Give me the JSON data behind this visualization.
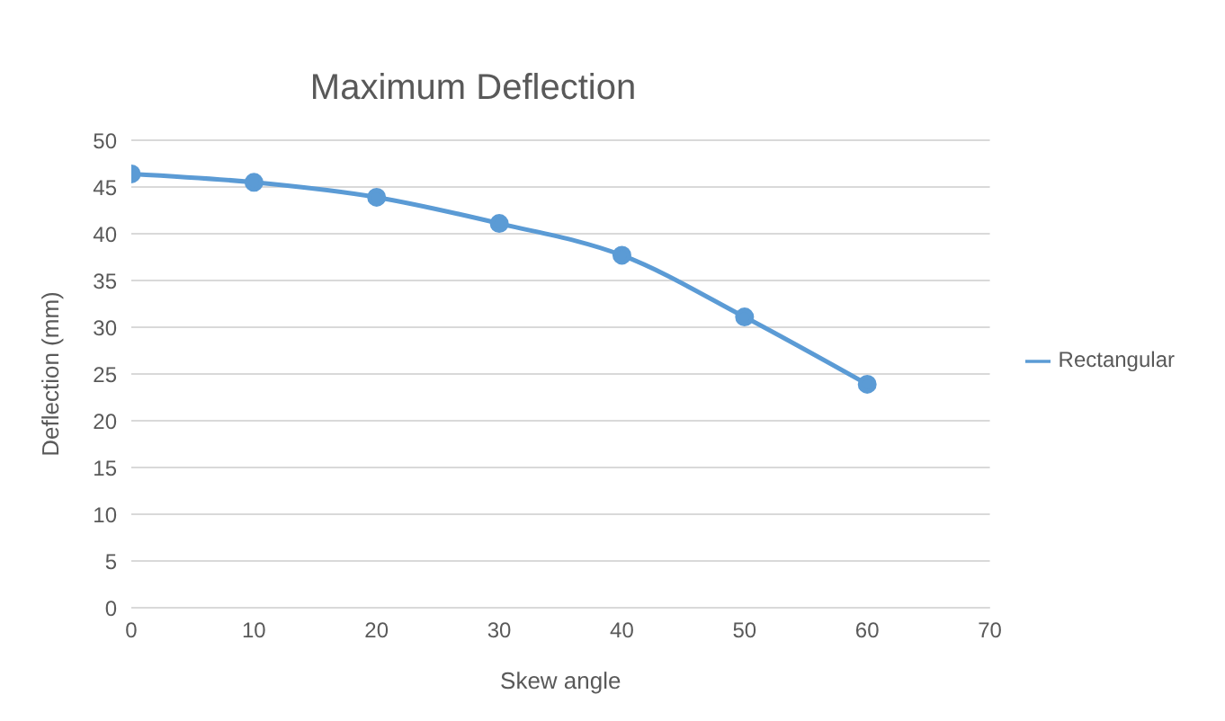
{
  "chart_data": {
    "type": "line",
    "title": "Maximum Deflection",
    "xlabel": "Skew angle",
    "ylabel": "Deflection (mm)",
    "x": [
      0,
      10,
      20,
      30,
      40,
      50,
      60
    ],
    "series": [
      {
        "name": "Rectangular",
        "color": "#5b9bd5",
        "values": [
          46.4,
          45.5,
          43.9,
          41.1,
          37.7,
          31.1,
          23.9
        ]
      }
    ],
    "xlim": [
      0,
      70
    ],
    "xticks": [
      0,
      10,
      20,
      30,
      40,
      50,
      60,
      70
    ],
    "ylim": [
      0,
      50
    ],
    "yticks": [
      0,
      5,
      10,
      15,
      20,
      25,
      30,
      35,
      40,
      45,
      50
    ],
    "grid": "y",
    "legend": "right",
    "marker": "circle",
    "line_style": "solid"
  }
}
